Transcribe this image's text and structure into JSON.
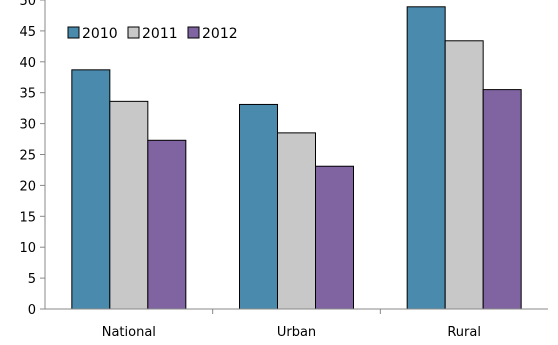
{
  "chart_data": {
    "type": "bar",
    "categories": [
      "National",
      "Urban",
      "Rural"
    ],
    "series": [
      {
        "name": "2010",
        "color": "#4a8bad",
        "values": [
          38.7,
          33.1,
          48.9
        ]
      },
      {
        "name": "2011",
        "color": "#c8c8c8",
        "values": [
          33.6,
          28.5,
          43.4
        ]
      },
      {
        "name": "2012",
        "color": "#8064a2",
        "values": [
          27.3,
          23.1,
          35.5
        ]
      }
    ],
    "yticks": [
      0,
      5,
      10,
      15,
      20,
      25,
      30,
      35,
      40,
      45,
      50
    ],
    "ylim": [
      0,
      50
    ],
    "grid": false,
    "legend": {
      "position": "top-left",
      "orientation": "horizontal"
    }
  }
}
